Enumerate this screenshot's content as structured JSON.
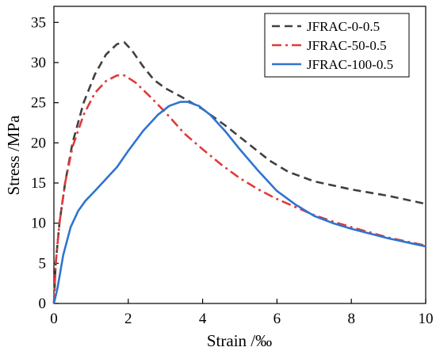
{
  "chart_data": {
    "type": "line",
    "title": "",
    "xlabel": "Strain /‰",
    "ylabel": "Stress /MPa",
    "xlim": [
      0,
      10
    ],
    "ylim": [
      0,
      37
    ],
    "xticks": [
      0,
      2,
      4,
      6,
      8,
      10
    ],
    "yticks": [
      0,
      5,
      10,
      15,
      20,
      25,
      30,
      35
    ],
    "grid": false,
    "legend_position": "top-right",
    "series": [
      {
        "name": "JFRAC-0-0.5",
        "color": "#404040",
        "dash": "dashed",
        "points": [
          [
            0,
            0
          ],
          [
            0.05,
            5
          ],
          [
            0.15,
            10
          ],
          [
            0.3,
            15
          ],
          [
            0.5,
            20
          ],
          [
            0.8,
            25
          ],
          [
            1.1,
            28.5
          ],
          [
            1.4,
            31
          ],
          [
            1.7,
            32.3
          ],
          [
            1.9,
            32.5
          ],
          [
            2.1,
            31.5
          ],
          [
            2.4,
            29.5
          ],
          [
            2.7,
            27.8
          ],
          [
            3,
            26.8
          ],
          [
            3.4,
            25.8
          ],
          [
            4,
            24.2
          ],
          [
            4.6,
            22.2
          ],
          [
            5.2,
            20
          ],
          [
            5.8,
            17.8
          ],
          [
            6.3,
            16.4
          ],
          [
            7,
            15.2
          ],
          [
            8,
            14.2
          ],
          [
            9,
            13.4
          ],
          [
            10,
            12.4
          ]
        ]
      },
      {
        "name": "JFRAC-50-0.5",
        "color": "#e03a3a",
        "dash": "dashdot",
        "points": [
          [
            0,
            0
          ],
          [
            0.05,
            5
          ],
          [
            0.15,
            10
          ],
          [
            0.3,
            15
          ],
          [
            0.5,
            19.5
          ],
          [
            0.8,
            23.5
          ],
          [
            1.1,
            26.2
          ],
          [
            1.4,
            27.7
          ],
          [
            1.7,
            28.4
          ],
          [
            1.9,
            28.4
          ],
          [
            2.2,
            27.5
          ],
          [
            2.6,
            25.7
          ],
          [
            3,
            23.8
          ],
          [
            3.5,
            21.2
          ],
          [
            4,
            19.2
          ],
          [
            4.5,
            17.3
          ],
          [
            5,
            15.6
          ],
          [
            5.5,
            14.2
          ],
          [
            6,
            13
          ],
          [
            6.5,
            12
          ],
          [
            7,
            11
          ],
          [
            7.5,
            10.2
          ],
          [
            8,
            9.5
          ],
          [
            9,
            8.2
          ],
          [
            10,
            7.2
          ]
        ]
      },
      {
        "name": "JFRAC-100-0.5",
        "color": "#2f74d0",
        "dash": "solid",
        "points": [
          [
            0,
            0
          ],
          [
            0.1,
            2
          ],
          [
            0.25,
            6
          ],
          [
            0.45,
            9.5
          ],
          [
            0.65,
            11.5
          ],
          [
            0.85,
            12.8
          ],
          [
            1.1,
            14
          ],
          [
            1.4,
            15.5
          ],
          [
            1.7,
            17
          ],
          [
            2,
            19
          ],
          [
            2.4,
            21.5
          ],
          [
            2.8,
            23.5
          ],
          [
            3.1,
            24.6
          ],
          [
            3.4,
            25.1
          ],
          [
            3.6,
            25.1
          ],
          [
            3.9,
            24.6
          ],
          [
            4.2,
            23.5
          ],
          [
            4.6,
            21.5
          ],
          [
            5,
            19.2
          ],
          [
            5.5,
            16.5
          ],
          [
            6,
            14
          ],
          [
            6.5,
            12.3
          ],
          [
            7,
            10.9
          ],
          [
            7.5,
            10
          ],
          [
            8,
            9.3
          ],
          [
            9,
            8.1
          ],
          [
            10,
            7.1
          ]
        ]
      }
    ]
  }
}
